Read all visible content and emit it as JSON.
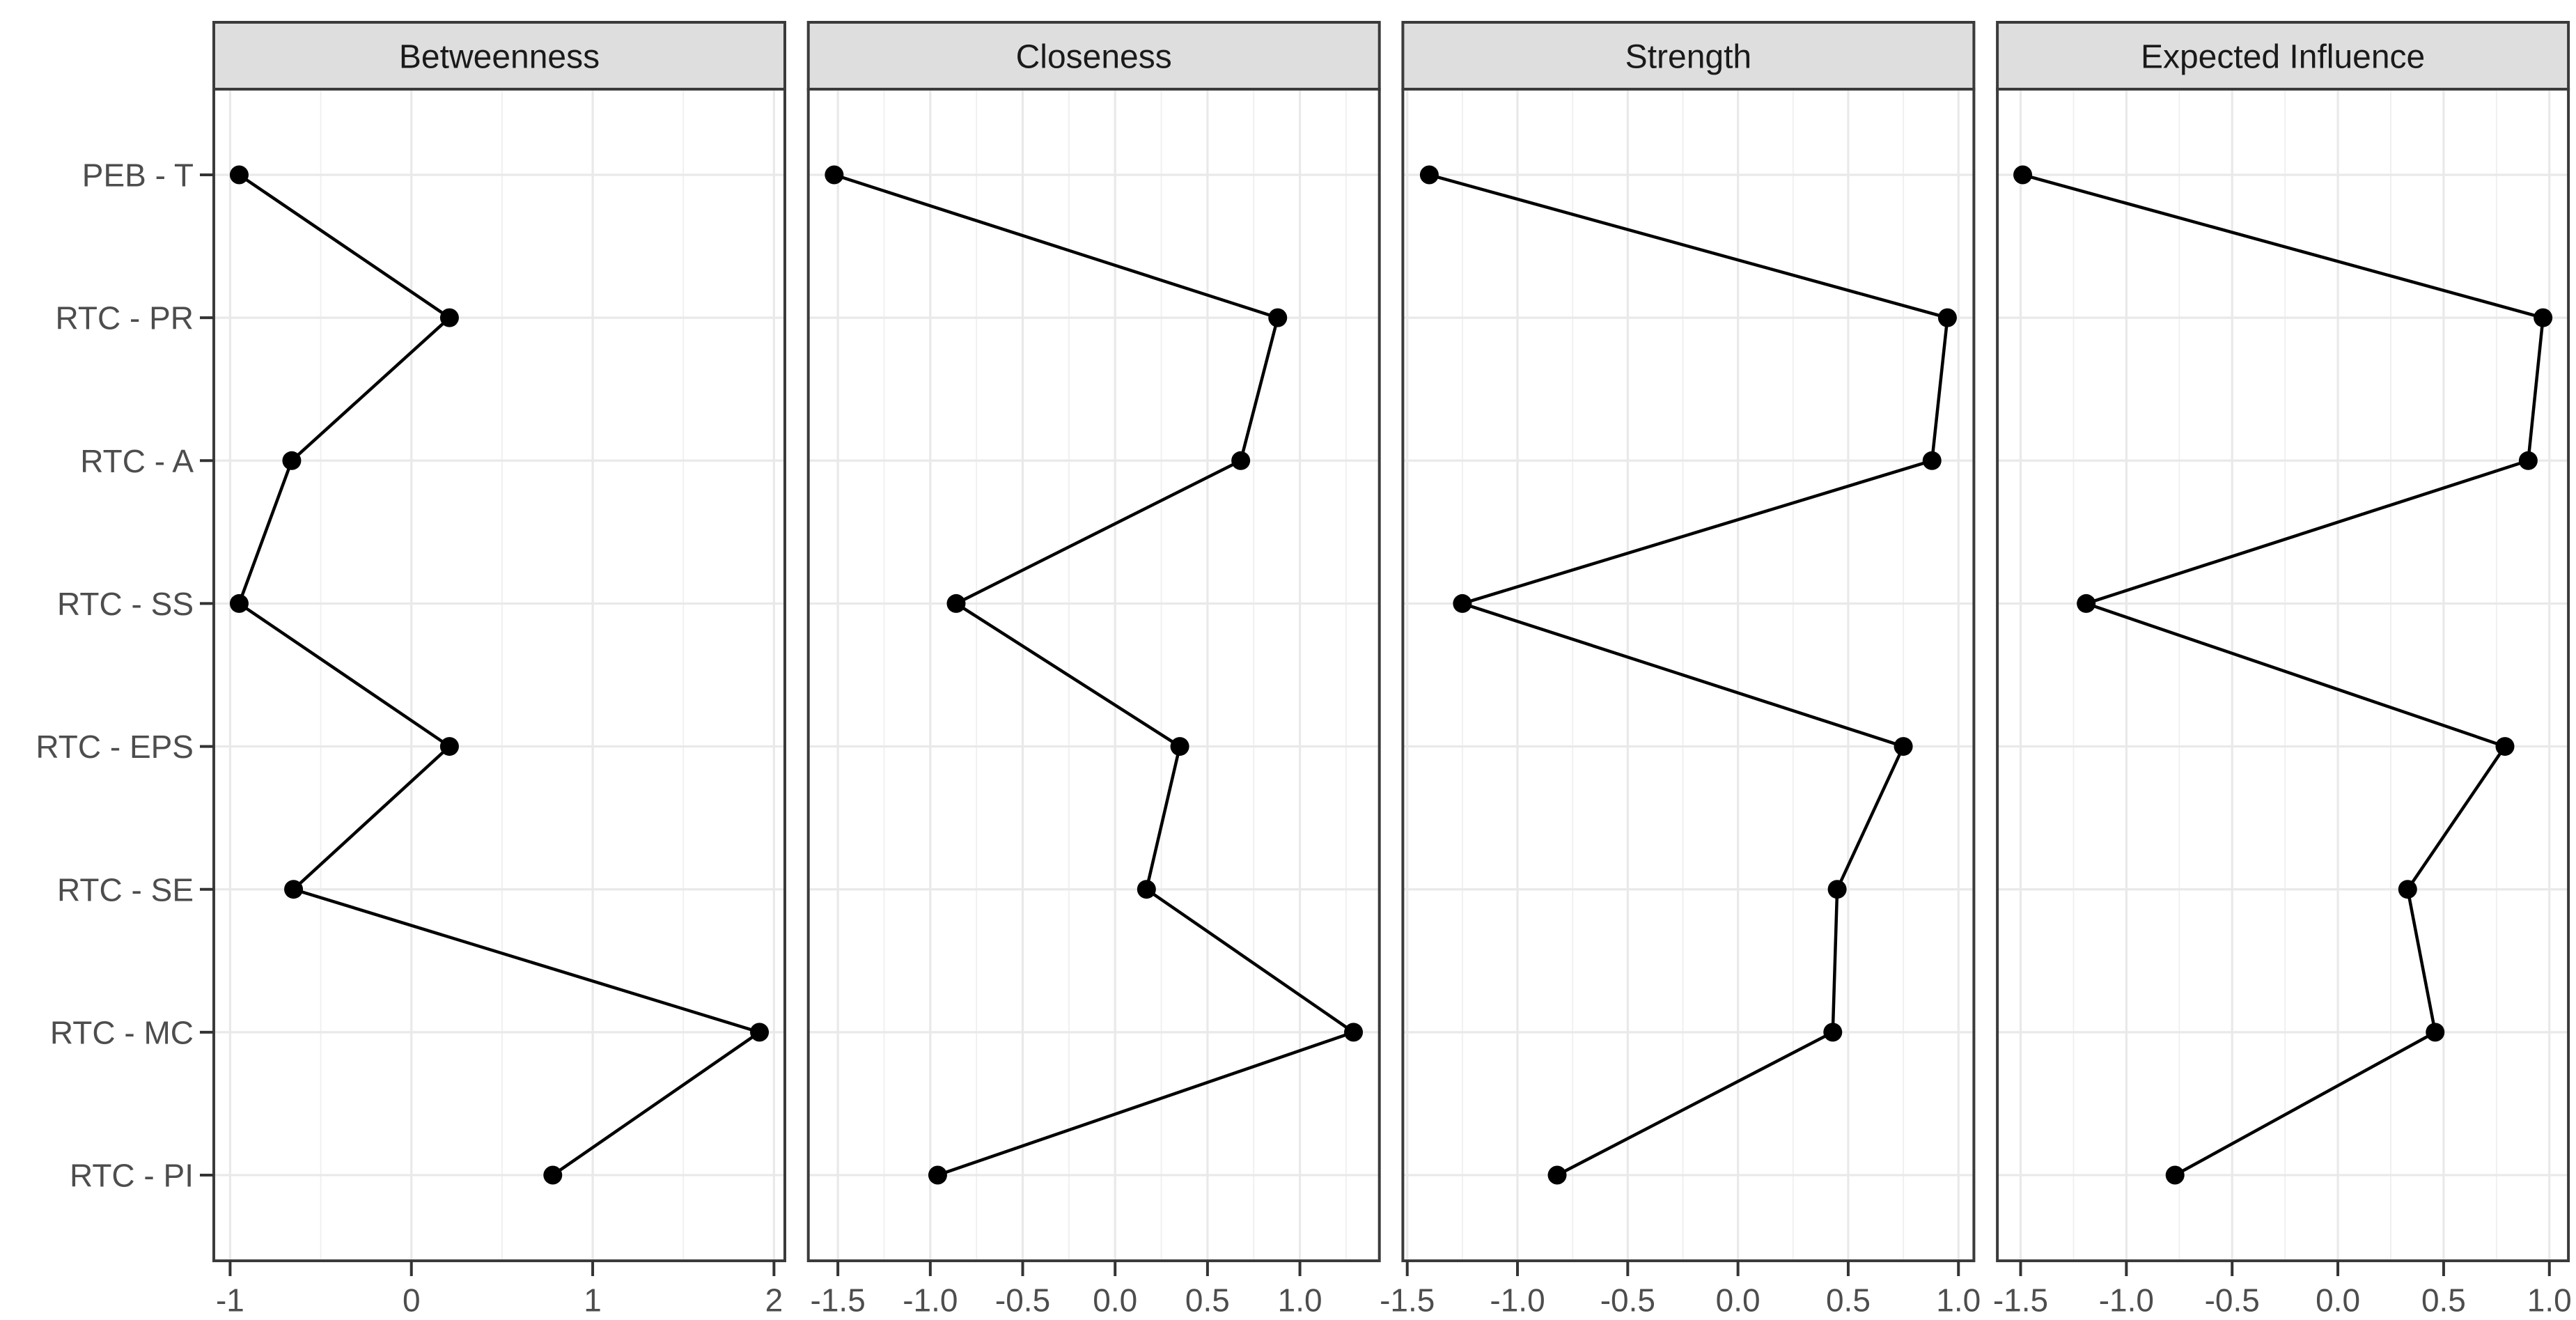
{
  "chart_data": {
    "type": "line",
    "description": "Faceted centrality indices plot: dot-and-line profiles of standardized centrality values per network node",
    "legend": "none",
    "grid": true,
    "categories": [
      "PEB - T",
      "RTC - PR",
      "RTC - A",
      "RTC - SS",
      "RTC - EPS",
      "RTC - SE",
      "RTC - MC",
      "RTC - PI"
    ],
    "panels": [
      {
        "title": "Betweenness",
        "xlim": [
          -1.09,
          2.06
        ],
        "major_ticks": [
          -1,
          0,
          1,
          2
        ],
        "tick_labels": [
          "-1",
          "0",
          "1",
          "2"
        ],
        "minor_step": 0.5,
        "values": [
          -0.95,
          0.21,
          -0.66,
          -0.95,
          0.21,
          -0.65,
          1.92,
          0.78
        ]
      },
      {
        "title": "Closeness",
        "xlim": [
          -1.66,
          1.43
        ],
        "major_ticks": [
          -1.5,
          -1.0,
          -0.5,
          0.0,
          0.5,
          1.0
        ],
        "tick_labels": [
          "-1.5",
          "-1.0",
          "-0.5",
          "0.0",
          "0.5",
          "1.0"
        ],
        "minor_step": 0.25,
        "values": [
          -1.52,
          0.88,
          0.68,
          -0.86,
          0.35,
          0.17,
          1.29,
          -0.96
        ]
      },
      {
        "title": "Strength",
        "xlim": [
          -1.52,
          1.07
        ],
        "major_ticks": [
          -1.5,
          -1.0,
          -0.5,
          0.0,
          0.5,
          1.0
        ],
        "tick_labels": [
          "-1.5",
          "-1.0",
          "-0.5",
          "0.0",
          "0.5",
          "1.0"
        ],
        "minor_step": 0.25,
        "values": [
          -1.4,
          0.95,
          0.88,
          -1.25,
          0.75,
          0.45,
          0.43,
          -0.82
        ]
      },
      {
        "title": "Expected Influence",
        "xlim": [
          -1.61,
          1.09
        ],
        "major_ticks": [
          -1.5,
          -1.0,
          -0.5,
          0.0,
          0.5,
          1.0
        ],
        "tick_labels": [
          "-1.5",
          "-1.0",
          "-0.5",
          "0.0",
          "0.5",
          "1.0"
        ],
        "minor_step": 0.25,
        "values": [
          -1.49,
          0.97,
          0.9,
          -1.19,
          0.79,
          0.33,
          0.46,
          -0.77
        ]
      }
    ],
    "style": {
      "background": "#ffffff",
      "panel_fill": "#ffffff",
      "panel_border": "#3b3b3b",
      "grid_major": "#e9e9e9",
      "grid_minor": "#efefef",
      "strip_fill": "#dedede",
      "strip_border": "#3b3b3b",
      "strip_text": "#1a1a1a",
      "axis_text": "#4d4d4d",
      "tick_mark": "#333333",
      "line_color": "#000000",
      "point_color": "#000000"
    }
  }
}
